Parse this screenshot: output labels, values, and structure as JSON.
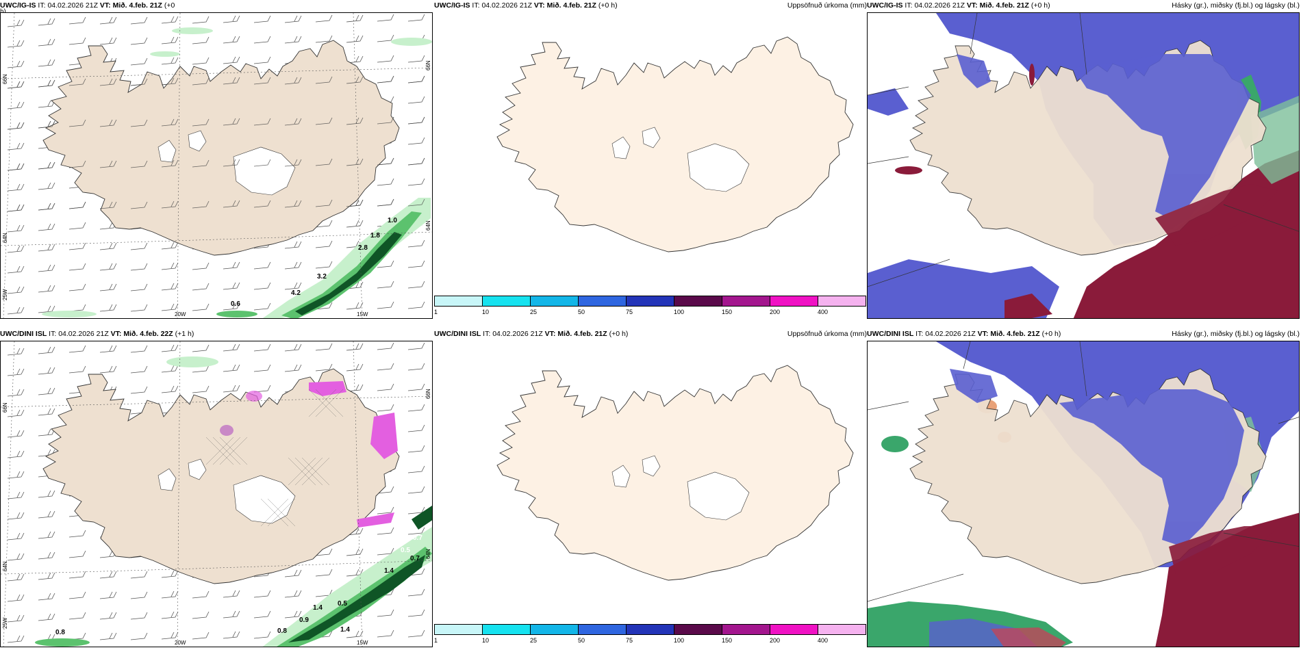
{
  "colors": {
    "land": "#eee0d0",
    "land_light": "#fdf1e4",
    "precip_light": "#c7f0cc",
    "precip_mid": "#5cc26e",
    "precip_dark": "#0f5526",
    "cloud_high": "#5a5fd0",
    "cloud_mid": "#8a1b3a",
    "cloud_low": "#3aa66b",
    "magenta": "#e35fe0"
  },
  "panels": [
    {
      "id": "p1",
      "header": {
        "model": "UWC/IG-IS",
        "it_label": "IT:",
        "it_value": "04.02.2026 21Z",
        "vt_label": "VT:",
        "vt_value": "Mið. 4.feb. 21Z",
        "lead": "(+0",
        "lead2": "h)"
      },
      "lon_labels": [
        "20W",
        "15W"
      ],
      "lat_labels": [
        "66N",
        "64N",
        "25W"
      ],
      "lat_labels_right": [
        "66N",
        "64N"
      ],
      "values": [
        "1.0",
        "1.8",
        "2.8",
        "3.2",
        "4.2",
        "0.6"
      ]
    },
    {
      "id": "p2",
      "header": {
        "model": "UWC/IG-IS",
        "it_label": "IT:",
        "it_value": "04.02.2026 21Z",
        "vt_label": "VT:",
        "vt_value": "Mið. 4.feb. 21Z",
        "lead": "(+0 h)",
        "right": "Uppsöfnuð úrkoma (mm)"
      },
      "colorbar": {
        "ticks": [
          "1",
          "10",
          "25",
          "50",
          "75",
          "100",
          "150",
          "200",
          "400"
        ],
        "colors": [
          "#c8f6f8",
          "#16e2ef",
          "#13b6e8",
          "#2f66e0",
          "#2334b8",
          "#5a0a4a",
          "#a3168e",
          "#f012c4",
          "#f5b2ef"
        ]
      }
    },
    {
      "id": "p3",
      "header": {
        "model": "UWC/IG-IS",
        "it_label": "IT:",
        "it_value": "04.02.2026 21Z",
        "vt_label": "VT:",
        "vt_value": "Mið. 4.feb. 21Z",
        "lead": "(+0 h)",
        "right": "Hásky (gr.), miðsky (fj.bl.) og lágsky (bl.)"
      }
    },
    {
      "id": "p4",
      "header": {
        "model": "UWC/DINI ISL",
        "it_label": "IT:",
        "it_value": "04.02.2026 21Z",
        "vt_label": "VT:",
        "vt_value": "Mið. 4.feb. 22Z",
        "lead": "(+1 h)"
      },
      "lon_labels": [
        "20W",
        "15W"
      ],
      "lat_labels": [
        "66N",
        "64N",
        "25W"
      ],
      "lat_labels_right": [
        "66N",
        "64N"
      ],
      "values": [
        "0.7",
        "0.5",
        "0.7",
        "1.4",
        "1.4",
        "0.9",
        "0.8",
        "0.8",
        "1.4",
        "0.5"
      ]
    },
    {
      "id": "p5",
      "header": {
        "model": "UWC/DINI ISL",
        "it_label": "IT:",
        "it_value": "04.02.2026 21Z",
        "vt_label": "VT:",
        "vt_value": "Mið. 4.feb. 21Z",
        "lead": "(+0 h)",
        "right": "Uppsöfnuð úrkoma (mm)"
      },
      "colorbar": {
        "ticks": [
          "1",
          "10",
          "25",
          "50",
          "75",
          "100",
          "150",
          "200",
          "400"
        ],
        "colors": [
          "#c8f6f8",
          "#16e2ef",
          "#13b6e8",
          "#2f66e0",
          "#2334b8",
          "#5a0a4a",
          "#a3168e",
          "#f012c4",
          "#f5b2ef"
        ]
      }
    },
    {
      "id": "p6",
      "header": {
        "model": "UWC/DINI ISL",
        "it_label": "IT:",
        "it_value": "04.02.2026 21Z",
        "vt_label": "VT:",
        "vt_value": "Mið. 4.feb. 21Z",
        "lead": "(+0 h)",
        "right": "Hásky (gr.), miðsky (fj.bl.) og lágsky (bl.)"
      }
    }
  ]
}
